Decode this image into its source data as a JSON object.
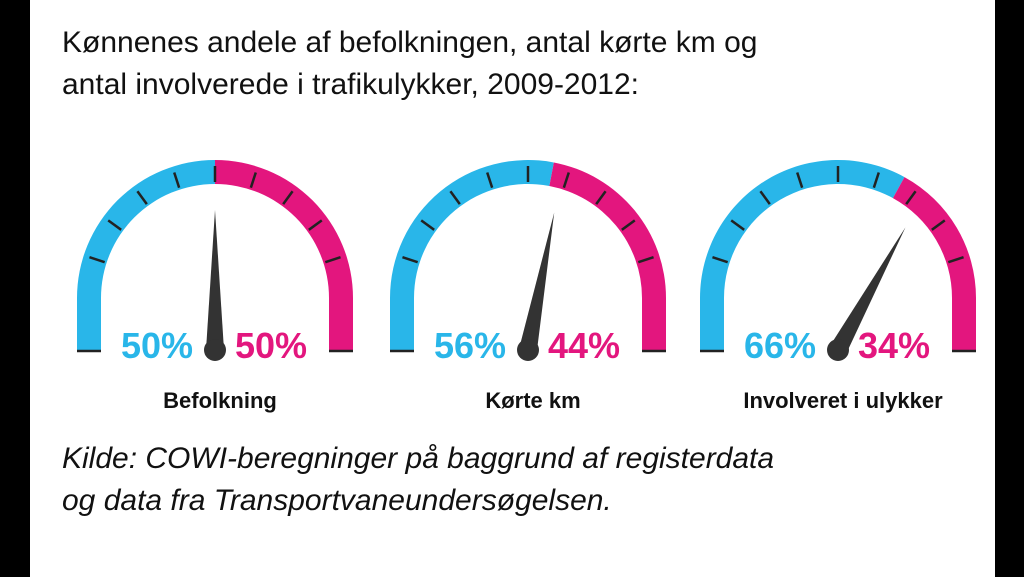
{
  "chart_data": {
    "type": "gauge",
    "title": [
      "Kønnenes andele af befolkningen, antal kørte km og",
      "antal involverede i trafikulykker, 2009-2012:"
    ],
    "categories": [
      "Befolkning",
      "Kørte km",
      "Involveret i ulykker"
    ],
    "series": [
      {
        "color": "#29b6e9",
        "values": [
          50,
          56,
          66
        ],
        "value_labels": [
          "50%",
          "56%",
          "66%"
        ]
      },
      {
        "color": "#e3167e",
        "values": [
          50,
          44,
          34
        ],
        "value_labels": [
          "50%",
          "44%",
          "34%"
        ]
      }
    ],
    "ylim": [
      0,
      100
    ],
    "yticks": [
      0,
      10,
      20,
      30,
      40,
      50,
      60,
      70,
      80,
      90,
      100
    ]
  },
  "source": [
    "Kilde: COWI-beregninger på baggrund af registerdata",
    "og data fra Transportvaneundersøgelsen."
  ]
}
